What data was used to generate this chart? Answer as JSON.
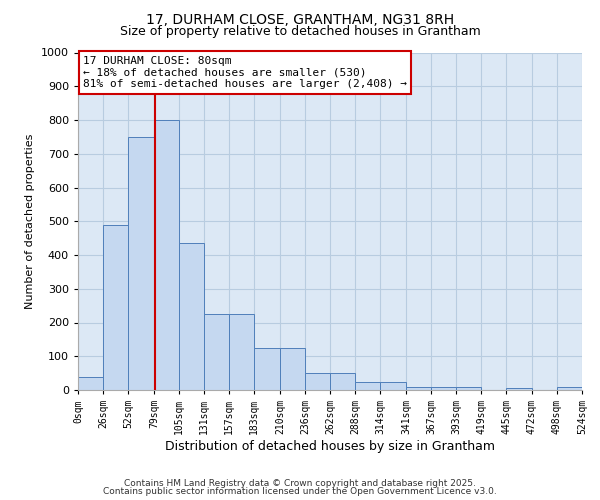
{
  "title_line1": "17, DURHAM CLOSE, GRANTHAM, NG31 8RH",
  "title_line2": "Size of property relative to detached houses in Grantham",
  "xlabel": "Distribution of detached houses by size in Grantham",
  "ylabel": "Number of detached properties",
  "bin_edges": [
    0,
    26,
    52,
    79,
    105,
    131,
    157,
    183,
    210,
    236,
    262,
    288,
    314,
    341,
    367,
    393,
    419,
    445,
    472,
    498,
    524
  ],
  "bar_heights": [
    40,
    490,
    750,
    800,
    435,
    225,
    225,
    125,
    125,
    50,
    50,
    25,
    25,
    10,
    10,
    10,
    0,
    5,
    0,
    10
  ],
  "bar_color": "#c5d8f0",
  "bar_edge_color": "#4f7fba",
  "property_size": 80,
  "red_line_color": "#cc0000",
  "annotation_text": "17 DURHAM CLOSE: 80sqm\n← 18% of detached houses are smaller (530)\n81% of semi-detached houses are larger (2,408) →",
  "annotation_box_color": "#ffffff",
  "annotation_border_color": "#cc0000",
  "ylim": [
    0,
    1000
  ],
  "yticks": [
    0,
    100,
    200,
    300,
    400,
    500,
    600,
    700,
    800,
    900,
    1000
  ],
  "tick_labels": [
    "0sqm",
    "26sqm",
    "52sqm",
    "79sqm",
    "105sqm",
    "131sqm",
    "157sqm",
    "183sqm",
    "210sqm",
    "236sqm",
    "262sqm",
    "288sqm",
    "314sqm",
    "341sqm",
    "367sqm",
    "393sqm",
    "419sqm",
    "445sqm",
    "472sqm",
    "498sqm",
    "524sqm"
  ],
  "footer_line1": "Contains HM Land Registry data © Crown copyright and database right 2025.",
  "footer_line2": "Contains public sector information licensed under the Open Government Licence v3.0.",
  "bg_color": "#ffffff",
  "plot_bg_color": "#dce8f5",
  "grid_color": "#b8cce0",
  "fig_width": 6.0,
  "fig_height": 5.0
}
